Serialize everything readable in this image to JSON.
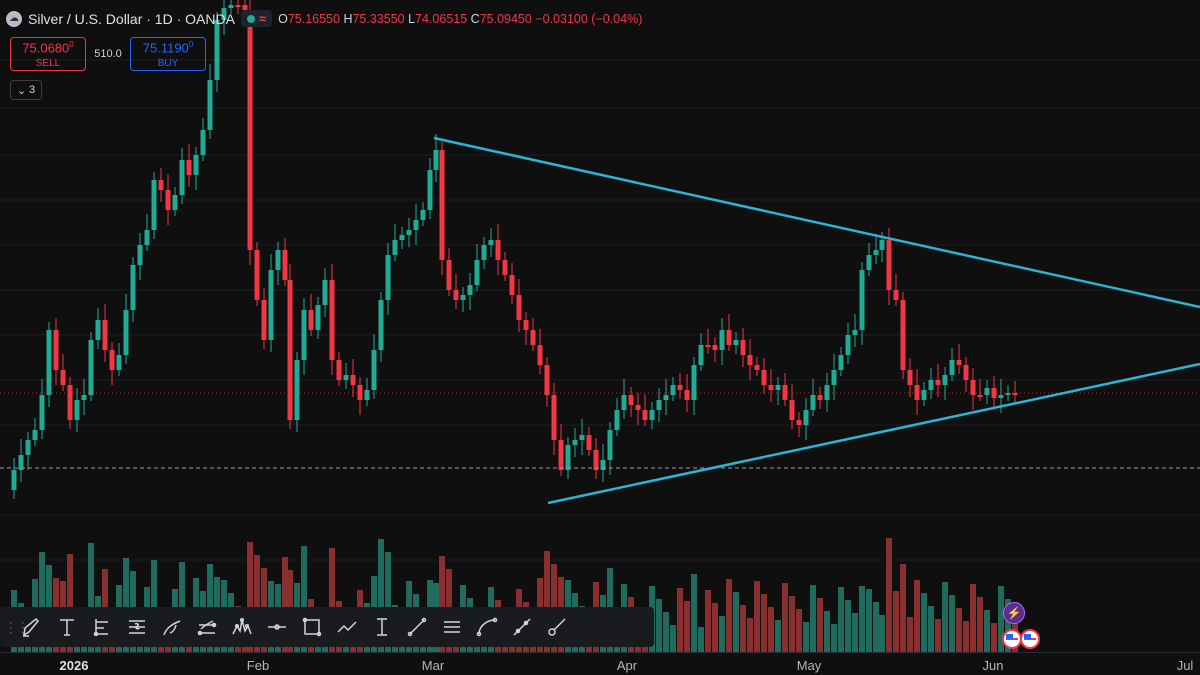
{
  "header": {
    "title": "Silver / U.S. Dollar · 1D · OANDA",
    "approx_glyph": "≈",
    "ohlc": {
      "o_label": "O",
      "o": "75.16550",
      "h_label": "H",
      "h": "75.33550",
      "l_label": "L",
      "l": "74.06515",
      "c_label": "C",
      "c": "75.09450",
      "change": "−0.03100 (−0.04%)"
    }
  },
  "trade": {
    "sell_price": "75.0680",
    "sell_price_sup": "0",
    "sell_label": "SELL",
    "spread": "510.0",
    "buy_price": "75.1190",
    "buy_price_sup": "0",
    "buy_label": "BUY"
  },
  "indicators_collapse": {
    "count": "3",
    "icon": "chevron-down-icon"
  },
  "xaxis": {
    "labels": [
      {
        "text": "2026",
        "bold": true
      },
      {
        "text": "Feb",
        "bold": false
      },
      {
        "text": "Mar",
        "bold": false
      },
      {
        "text": "Apr",
        "bold": false
      },
      {
        "text": "May",
        "bold": false
      },
      {
        "text": "Jun",
        "bold": false
      },
      {
        "text": "Jul",
        "bold": false
      }
    ]
  },
  "toolbar": {
    "tools": [
      "brush-icon",
      "text-icon",
      "long-position-icon",
      "short-position-icon",
      "path-icon",
      "parallel-channel-icon",
      "head-shoulders-icon",
      "horizontal-ray-icon",
      "rectangle-icon",
      "polyline-icon",
      "date-range-icon",
      "trendline-icon",
      "horizontal-lines-icon",
      "curve-icon",
      "ray-icon",
      "extended-line-icon"
    ]
  },
  "events": {
    "bolt_icon": "lightning-icon",
    "flag_icon": "us-flag-icon"
  },
  "colors": {
    "background": "#0f0f0f",
    "up": "#22ab94",
    "down": "#f23645",
    "volume_up": "#1f6b5e",
    "volume_down": "#8a2f2f",
    "trendline": "#29b6d6"
  },
  "chart_data": {
    "type": "candlestick",
    "series": [
      {
        "name": "SELL",
        "values": [
          75.068
        ]
      },
      {
        "name": "BUY",
        "values": [
          75.119
        ]
      }
    ],
    "drawings": [
      "descending-trendline",
      "ascending-trendline"
    ]
  }
}
